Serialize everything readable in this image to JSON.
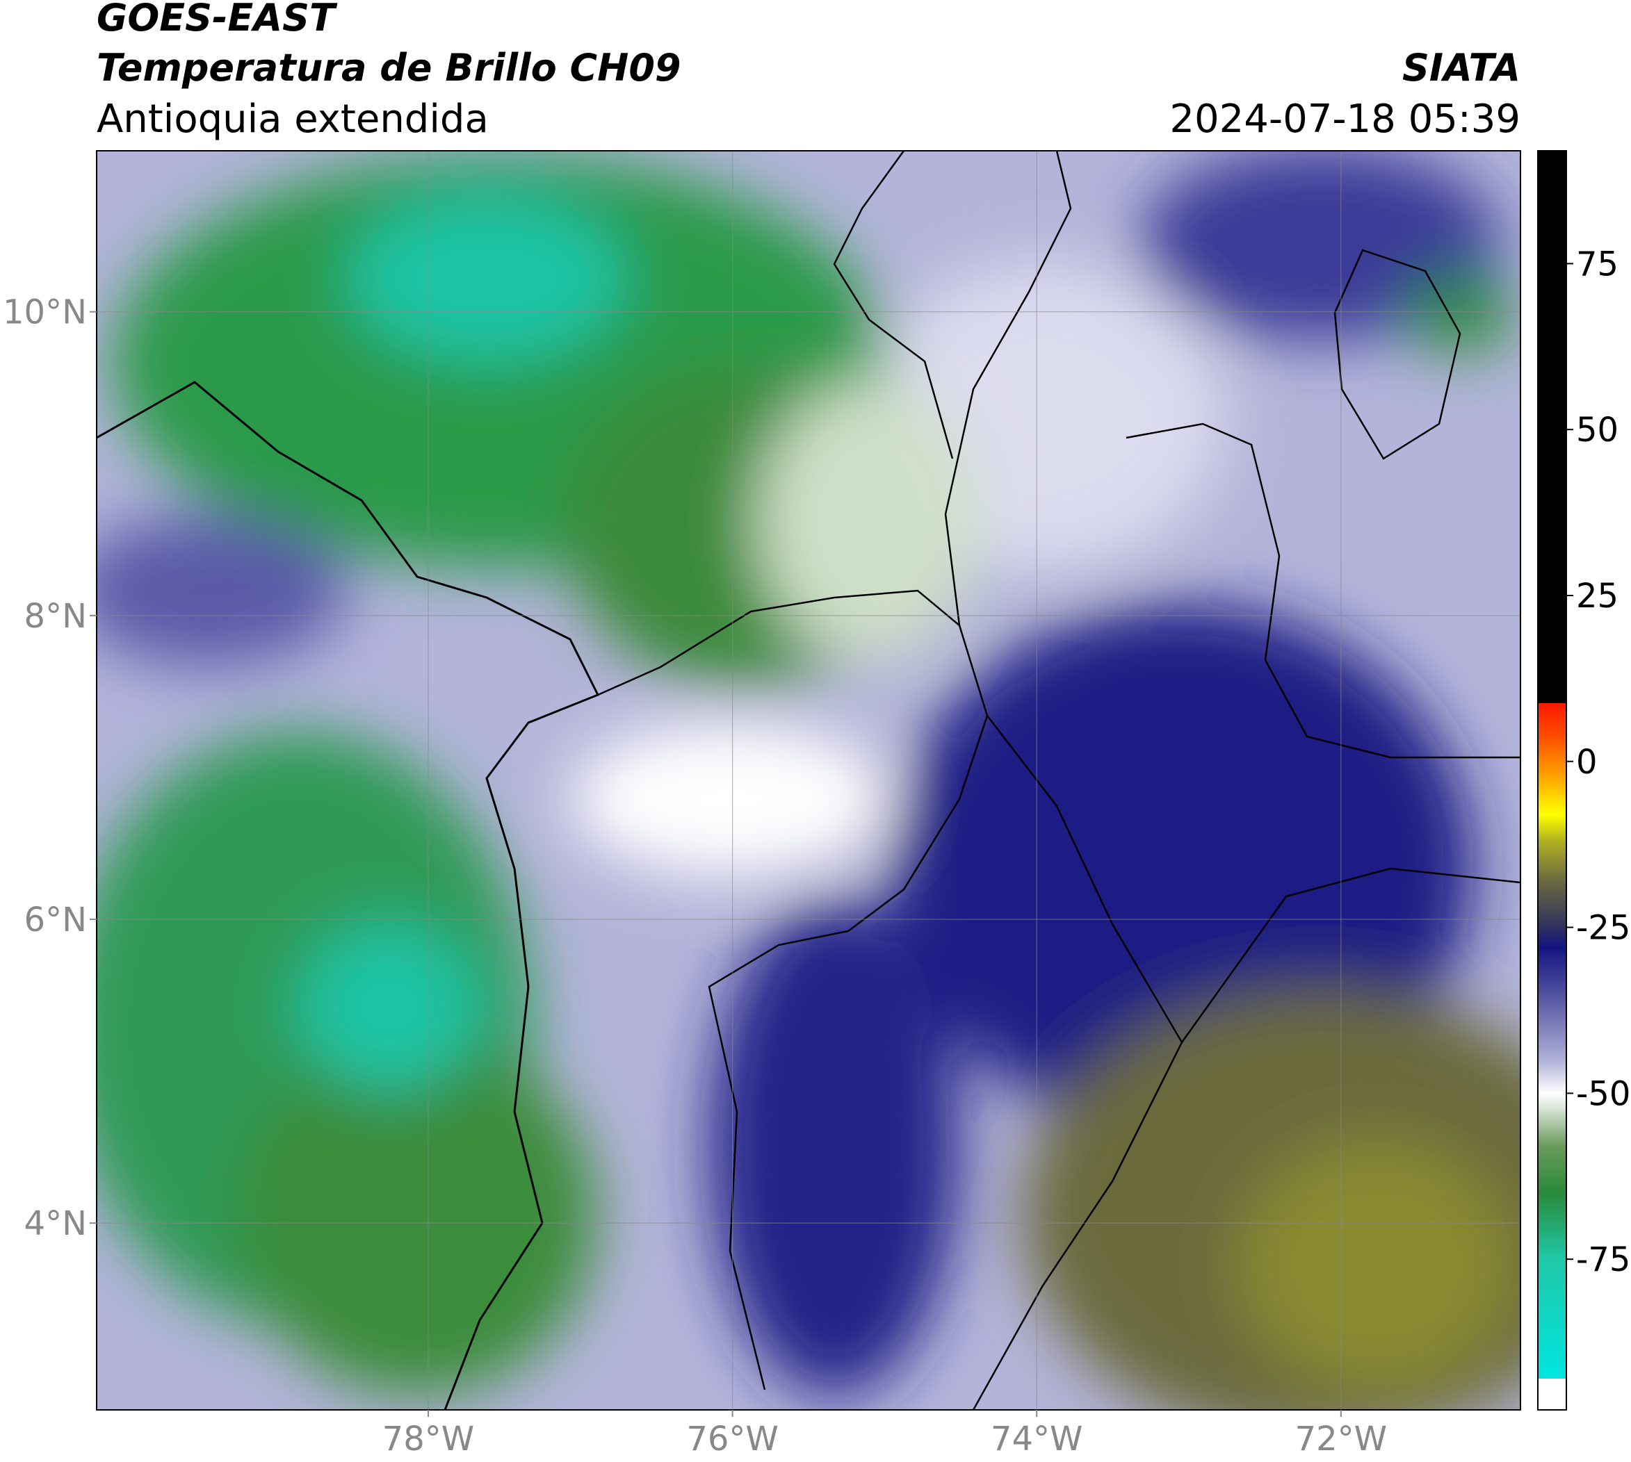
{
  "header": {
    "title": "GOES-EAST",
    "subtitle": "Temperatura de Brillo CH09",
    "region": "Antioquia extendida",
    "source": "SIATA",
    "datetime": "2024-07-18 05:39"
  },
  "map": {
    "xlim": [
      -80.18,
      -70.82
    ],
    "ylim": [
      2.77,
      11.06
    ],
    "xticks": [
      {
        "value": -78,
        "label": "78°W"
      },
      {
        "value": -76,
        "label": "76°W"
      },
      {
        "value": -74,
        "label": "74°W"
      },
      {
        "value": -72,
        "label": "72°W"
      }
    ],
    "yticks": [
      {
        "value": 4,
        "label": "4°N"
      },
      {
        "value": 6,
        "label": "6°N"
      },
      {
        "value": 8,
        "label": "8°N"
      },
      {
        "value": 10,
        "label": "10°N"
      }
    ]
  },
  "colorbar": {
    "range": [
      -97.7,
      92
    ],
    "ticks": [
      75,
      50,
      25,
      0,
      -25,
      -50,
      -75
    ],
    "stops": [
      {
        "value": 92,
        "color": "#000000"
      },
      {
        "value": 8.75,
        "color": "#000000"
      },
      {
        "value": 8.75,
        "color": "#ff1a00"
      },
      {
        "value": 4,
        "color": "#ff4a00"
      },
      {
        "value": -2,
        "color": "#ffa000"
      },
      {
        "value": -8,
        "color": "#ffff00"
      },
      {
        "value": -12,
        "color": "#b0b020"
      },
      {
        "value": -18,
        "color": "#6a6a40"
      },
      {
        "value": -25,
        "color": "#303060"
      },
      {
        "value": -28,
        "color": "#141480"
      },
      {
        "value": -35,
        "color": "#5050a0"
      },
      {
        "value": -45,
        "color": "#b0b0d8"
      },
      {
        "value": -50,
        "color": "#ffffff"
      },
      {
        "value": -52,
        "color": "#dde8dd"
      },
      {
        "value": -58,
        "color": "#6a9a5a"
      },
      {
        "value": -65,
        "color": "#2a8a3a"
      },
      {
        "value": -75,
        "color": "#20c8a8"
      },
      {
        "value": -93,
        "color": "#00e5e0"
      },
      {
        "value": -93,
        "color": "#ffffff"
      },
      {
        "value": -97.7,
        "color": "#ffffff"
      }
    ]
  }
}
